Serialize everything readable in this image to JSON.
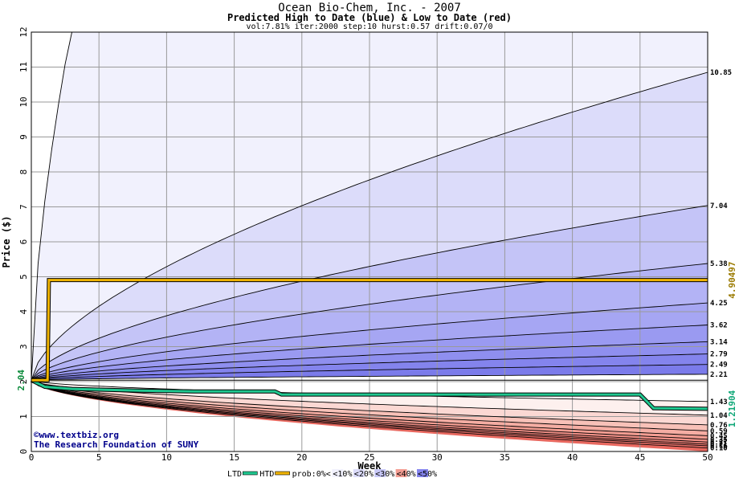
{
  "chart_data": {
    "type": "area",
    "title": "Ocean Bio-Chem, Inc. - 2007",
    "subtitle": "Predicted High to Date (blue) &  Low to Date (red)",
    "params": "vol:7.81% iter:2000 step:10 hurst:0.57 drift:0.07/0",
    "xlabel": "Week",
    "ylabel": "Price ($)",
    "xlim": [
      0,
      50
    ],
    "ylim": [
      0,
      12
    ],
    "x_ticks": [
      0,
      5,
      10,
      15,
      20,
      25,
      30,
      35,
      40,
      45,
      50
    ],
    "y_ticks": [
      0,
      1,
      2,
      3,
      4,
      5,
      6,
      7,
      8,
      9,
      10,
      11,
      12
    ],
    "grid": true,
    "start_price": 2.04,
    "start_price_label": "2.04",
    "right_labels": [
      "10.85",
      "7.04",
      "5.38",
      "4.25",
      "3.62",
      "3.14",
      "2.79",
      "2.49",
      "2.21",
      "1.43",
      "1.04",
      "0.76",
      "0.59",
      "0.45",
      "0.35",
      "0.27",
      "0.21",
      "0.16",
      "0.10"
    ],
    "high_curves_end": [
      10.85,
      7.04,
      5.38,
      4.25,
      3.62,
      3.14,
      2.79,
      2.49,
      2.21
    ],
    "low_curves_end": [
      1.43,
      1.04,
      0.76,
      0.59,
      0.45,
      0.35,
      0.27,
      0.21,
      0.16,
      0.1
    ],
    "band_colors_high": [
      "#f1f1fd",
      "#dcdcfa",
      "#c4c4f7",
      "#b3b3f5",
      "#a6a6f3",
      "#9a9af1",
      "#8f8fef",
      "#8484ed",
      "#7b7bea"
    ],
    "band_colors_low": [
      "#fdf0ee",
      "#fbd8d3",
      "#f8c1b8",
      "#f5ada3",
      "#f39d92",
      "#f19087",
      "#ef857c",
      "#ed7a72",
      "#eb7169",
      "#e8685f"
    ],
    "htd_series": {
      "name": "HTD",
      "color": "#f0b400",
      "label": "4.90497",
      "x": [
        0,
        1.2,
        1.3,
        50
      ],
      "y": [
        2.04,
        2.04,
        4.905,
        4.905
      ]
    },
    "ltd_series": {
      "name": "LTD",
      "color": "#20c890",
      "label": "1.21904",
      "x": [
        0,
        1,
        3,
        8,
        12,
        18,
        18.5,
        45,
        46,
        50
      ],
      "y": [
        2.04,
        1.85,
        1.79,
        1.74,
        1.72,
        1.72,
        1.63,
        1.63,
        1.24,
        1.22
      ]
    },
    "legend": {
      "placement": "bottom",
      "items": [
        {
          "label": "LTD",
          "swatch": "#20c890"
        },
        {
          "label": "HTD",
          "swatch": "#f0b400"
        },
        {
          "label": "prob:0%<",
          "swatch": "#ffffff"
        },
        {
          "label": "<10%",
          "swatch": "#f1f1fd"
        },
        {
          "label": "<20%",
          "swatch": "#dcdcfa"
        },
        {
          "label": "<30%",
          "swatch": "#c8c8f7"
        },
        {
          "label": "<40%",
          "swatch": "#f39d92"
        },
        {
          "label": "<50%",
          "swatch": "#8484ed"
        }
      ]
    },
    "watermark_lines": [
      "©www.textbiz.org",
      "The Research Foundation of SUNY"
    ]
  }
}
